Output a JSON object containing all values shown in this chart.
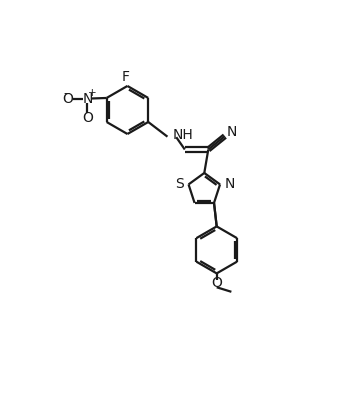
{
  "bg_color": "#ffffff",
  "line_color": "#1a1a1a",
  "line_width": 1.6,
  "fig_width": 3.45,
  "fig_height": 4.16,
  "dpi": 100,
  "font_size": 9.5,
  "xlim": [
    0,
    10
  ],
  "ylim": [
    0,
    12
  ]
}
